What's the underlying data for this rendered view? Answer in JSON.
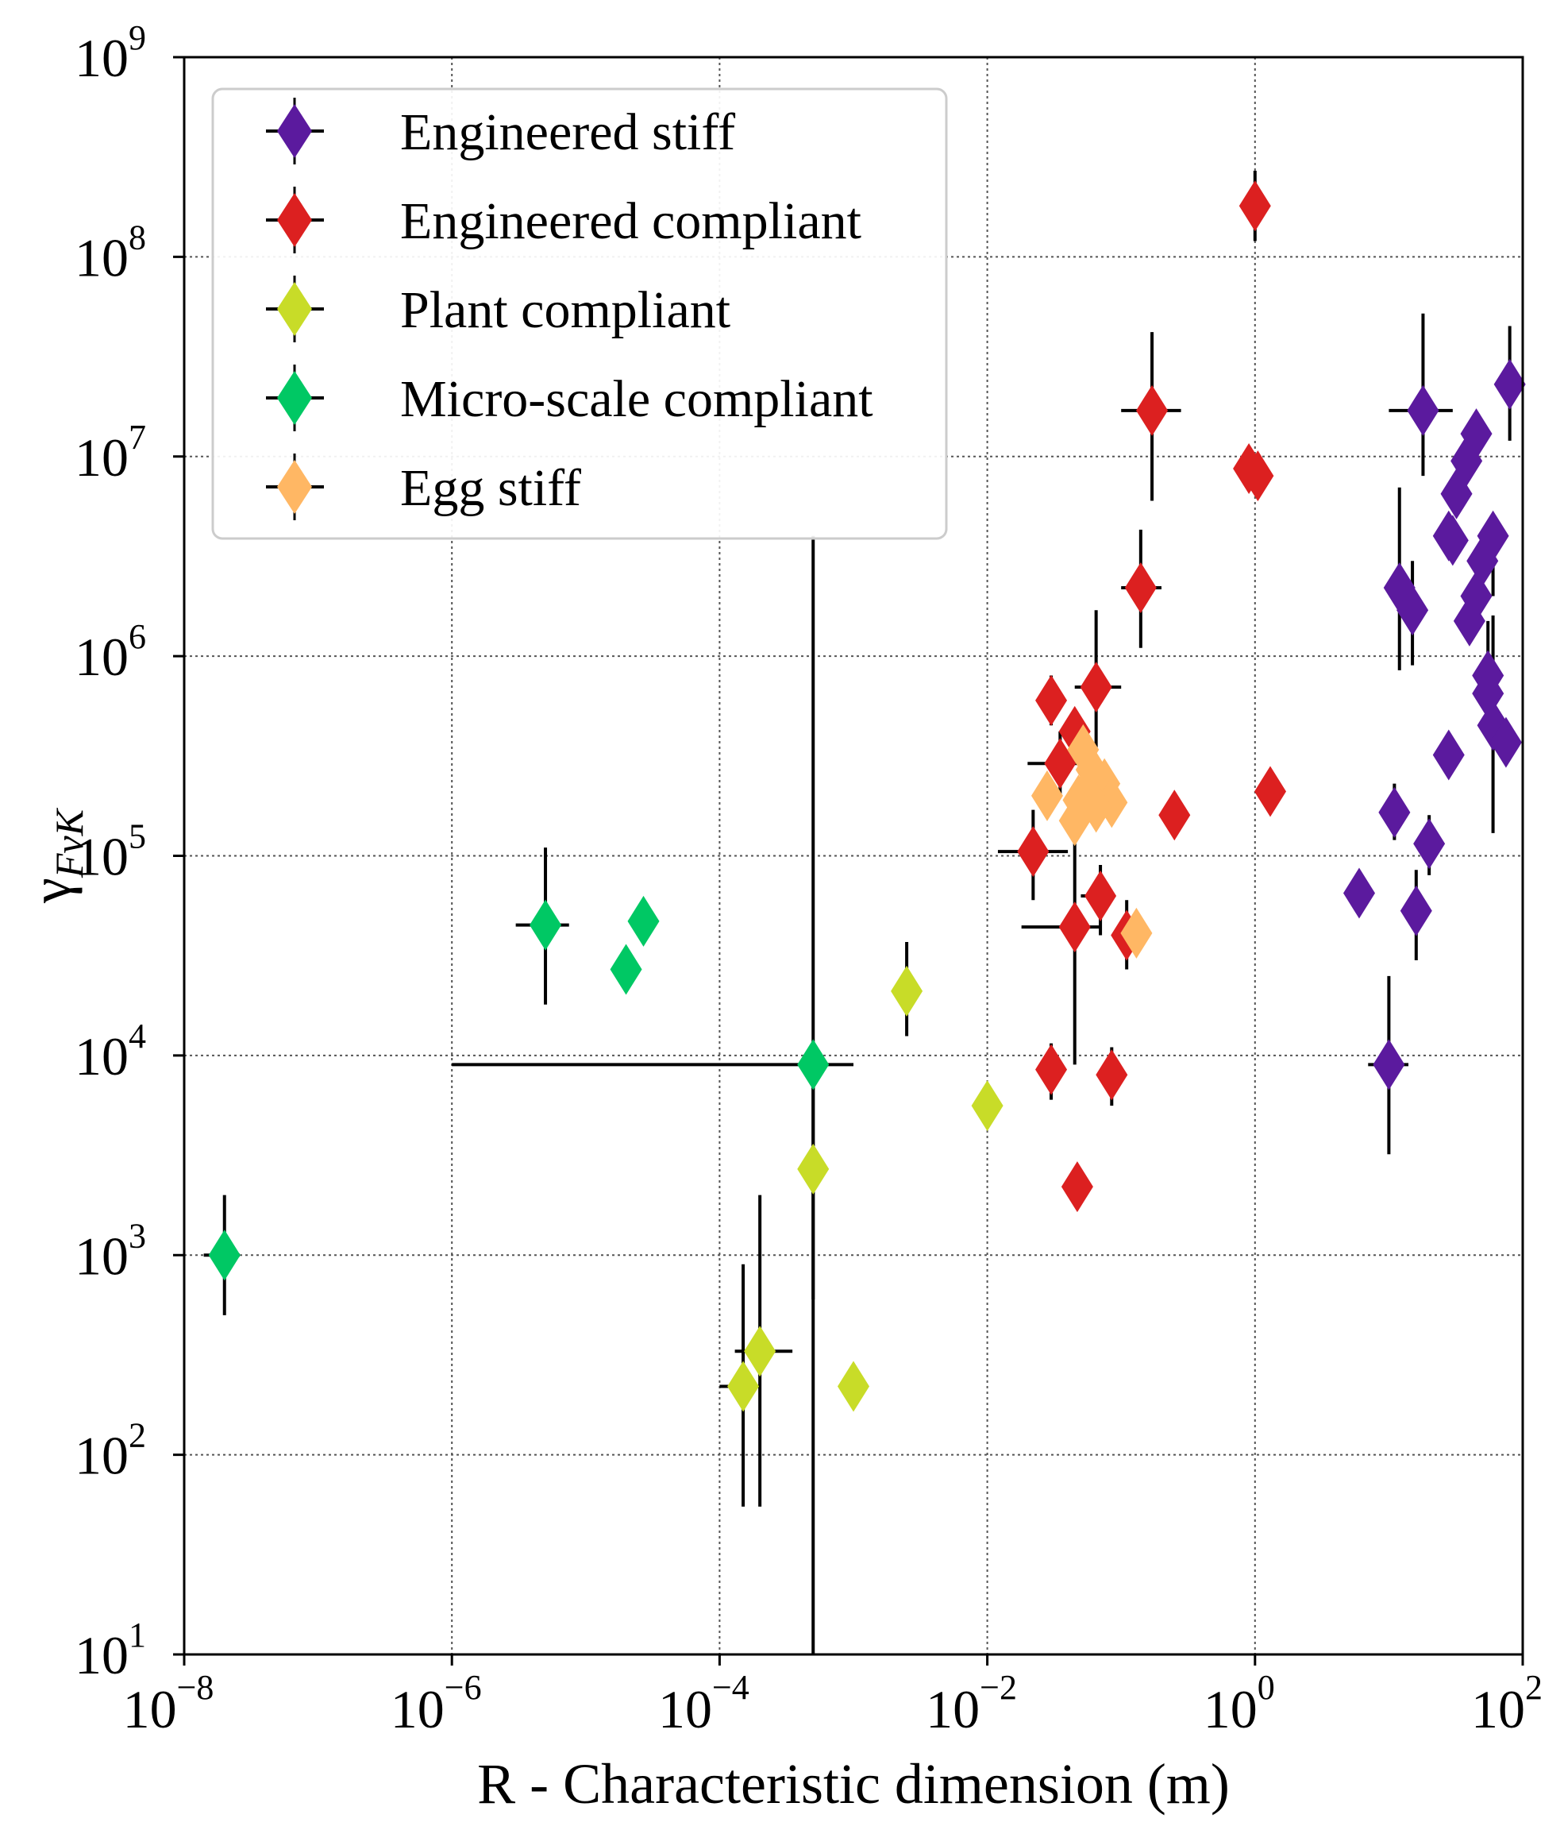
{
  "chart_data": {
    "type": "scatter",
    "xscale": "log",
    "yscale": "log",
    "xlim": [
      1e-08,
      100
    ],
    "ylim": [
      10,
      1000000000
    ],
    "grid": true,
    "legend_position": "top-left",
    "xlabel": "R - Characteristic dimension (m)",
    "ylabel": "γFvK",
    "ylabel_parts": {
      "base": "γ",
      "sub": "FvK"
    },
    "x_ticks": [
      {
        "base": "10",
        "exp": "−8",
        "value": 1e-08
      },
      {
        "base": "10",
        "exp": "−6",
        "value": 1e-06
      },
      {
        "base": "10",
        "exp": "−4",
        "value": 0.0001
      },
      {
        "base": "10",
        "exp": "−2",
        "value": 0.01
      },
      {
        "base": "10",
        "exp": "0",
        "value": 1
      },
      {
        "base": "10",
        "exp": "2",
        "value": 100
      }
    ],
    "y_ticks": [
      {
        "base": "10",
        "exp": "1",
        "value": 10
      },
      {
        "base": "10",
        "exp": "2",
        "value": 100
      },
      {
        "base": "10",
        "exp": "3",
        "value": 1000
      },
      {
        "base": "10",
        "exp": "4",
        "value": 10000
      },
      {
        "base": "10",
        "exp": "5",
        "value": 100000
      },
      {
        "base": "10",
        "exp": "6",
        "value": 1000000
      },
      {
        "base": "10",
        "exp": "7",
        "value": 10000000
      },
      {
        "base": "10",
        "exp": "8",
        "value": 100000000
      },
      {
        "base": "10",
        "exp": "9",
        "value": 1000000000
      }
    ],
    "series": [
      {
        "name": "Engineered stiff",
        "color": "#5b1a9e",
        "points": [
          {
            "x": 80,
            "y": 23000000,
            "ylo": 12000000,
            "yhi": 45000000
          },
          {
            "x": 18,
            "y": 17000000,
            "ylo": 8000000,
            "yhi": 52000000,
            "xlo": 10,
            "xhi": 30
          },
          {
            "x": 45,
            "y": 13000000
          },
          {
            "x": 38,
            "y": 9500000
          },
          {
            "x": 32,
            "y": 6500000
          },
          {
            "x": 28,
            "y": 4000000
          },
          {
            "x": 30,
            "y": 3800000
          },
          {
            "x": 60,
            "y": 4000000,
            "ylo": 2000000,
            "yhi": 5000000
          },
          {
            "x": 50,
            "y": 3000000
          },
          {
            "x": 45,
            "y": 2000000
          },
          {
            "x": 40,
            "y": 1500000
          },
          {
            "x": 12,
            "y": 2200000,
            "ylo": 850000,
            "yhi": 7000000
          },
          {
            "x": 15,
            "y": 1700000,
            "ylo": 900000,
            "yhi": 3000000
          },
          {
            "x": 55,
            "y": 800000,
            "ylo": 400000,
            "yhi": 1500000
          },
          {
            "x": 55,
            "y": 650000
          },
          {
            "x": 60,
            "y": 450000,
            "ylo": 130000,
            "yhi": 1600000
          },
          {
            "x": 75,
            "y": 370000
          },
          {
            "x": 28,
            "y": 320000
          },
          {
            "x": 11,
            "y": 165000,
            "ylo": 120000,
            "yhi": 230000
          },
          {
            "x": 20,
            "y": 115000,
            "ylo": 80000,
            "yhi": 160000
          },
          {
            "x": 6,
            "y": 65000
          },
          {
            "x": 16,
            "y": 53000,
            "ylo": 30000,
            "yhi": 85000
          },
          {
            "x": 10,
            "y": 9000,
            "ylo": 3200,
            "yhi": 25000,
            "xlo": 7,
            "xhi": 14
          }
        ]
      },
      {
        "name": "Engineered compliant",
        "color": "#dc2020",
        "points": [
          {
            "x": 1.0,
            "y": 180000000,
            "ylo": 120000000,
            "yhi": 270000000
          },
          {
            "x": 0.17,
            "y": 17000000,
            "ylo": 6000000,
            "yhi": 42000000,
            "xlo": 0.1,
            "xhi": 0.28
          },
          {
            "x": 0.9,
            "y": 8700000
          },
          {
            "x": 1.05,
            "y": 8000000
          },
          {
            "x": 0.14,
            "y": 2200000,
            "ylo": 1100000,
            "yhi": 4300000,
            "xlo": 0.1,
            "xhi": 0.2
          },
          {
            "x": 0.065,
            "y": 700000,
            "ylo": 350000,
            "yhi": 1700000,
            "xlo": 0.045,
            "xhi": 0.1
          },
          {
            "x": 0.03,
            "y": 600000,
            "ylo": 450000,
            "yhi": 800000
          },
          {
            "x": 0.045,
            "y": 420000
          },
          {
            "x": 0.035,
            "y": 290000,
            "ylo": 200000,
            "yhi": 420000,
            "xlo": 0.02,
            "xhi": 0.05
          },
          {
            "x": 0.25,
            "y": 160000
          },
          {
            "x": 1.3,
            "y": 210000
          },
          {
            "x": 0.022,
            "y": 105000,
            "ylo": 60000,
            "yhi": 170000,
            "xlo": 0.012,
            "xhi": 0.04
          },
          {
            "x": 0.07,
            "y": 63000,
            "ylo": 40000,
            "yhi": 90000,
            "xlo": 0.05,
            "xhi": 0.09
          },
          {
            "x": 0.045,
            "y": 44000,
            "ylo": 9000,
            "yhi": 150000,
            "xlo": 0.018,
            "xhi": 0.07
          },
          {
            "x": 0.11,
            "y": 40000,
            "ylo": 27000,
            "yhi": 60000
          },
          {
            "x": 0.03,
            "y": 8500,
            "ylo": 6000,
            "yhi": 11500
          },
          {
            "x": 0.085,
            "y": 8000,
            "ylo": 5600,
            "yhi": 11000
          },
          {
            "x": 0.047,
            "y": 2200
          }
        ]
      },
      {
        "name": "Plant compliant",
        "color": "#c8dc28",
        "points": [
          {
            "x": 0.0025,
            "y": 21000,
            "ylo": 12500,
            "yhi": 37000
          },
          {
            "x": 0.01,
            "y": 5600
          },
          {
            "x": 0.0005,
            "y": 2700,
            "ylo": 600,
            "yhi": 9000,
            "xlo": 0.0004,
            "xhi": 0.0006
          },
          {
            "x": 0.001,
            "y": 220
          },
          {
            "x": 0.0002,
            "y": 330,
            "ylo": 55,
            "yhi": 2000,
            "xlo": 0.00013,
            "xhi": 0.00035
          },
          {
            "x": 0.00015,
            "y": 220,
            "ylo": 55,
            "yhi": 900,
            "xlo": 0.0001,
            "xhi": 0.0002
          }
        ]
      },
      {
        "name": "Micro-scale compliant",
        "color": "#00c864",
        "points": [
          {
            "x": 5e-06,
            "y": 45000,
            "ylo": 18000,
            "yhi": 110000,
            "xlo": 3e-06,
            "xhi": 7.5e-06
          },
          {
            "x": 2e-05,
            "y": 27000
          },
          {
            "x": 2.7e-05,
            "y": 47000
          },
          {
            "x": 0.0005,
            "y": 9000,
            "ylo": 10,
            "yhi": 4000000,
            "xlo": 1e-06,
            "xhi": 0.001
          },
          {
            "x": 2e-08,
            "y": 1000,
            "ylo": 500,
            "yhi": 2000,
            "xlo": 1.4e-08,
            "xhi": 2.6e-08
          }
        ]
      },
      {
        "name": "Egg stiff",
        "color": "#ffb764",
        "points": [
          {
            "x": 0.052,
            "y": 340000
          },
          {
            "x": 0.06,
            "y": 270000
          },
          {
            "x": 0.075,
            "y": 230000
          },
          {
            "x": 0.055,
            "y": 210000
          },
          {
            "x": 0.028,
            "y": 200000
          },
          {
            "x": 0.048,
            "y": 190000
          },
          {
            "x": 0.085,
            "y": 185000
          },
          {
            "x": 0.065,
            "y": 175000
          },
          {
            "x": 0.045,
            "y": 150000
          },
          {
            "x": 0.13,
            "y": 41000
          }
        ]
      }
    ]
  }
}
